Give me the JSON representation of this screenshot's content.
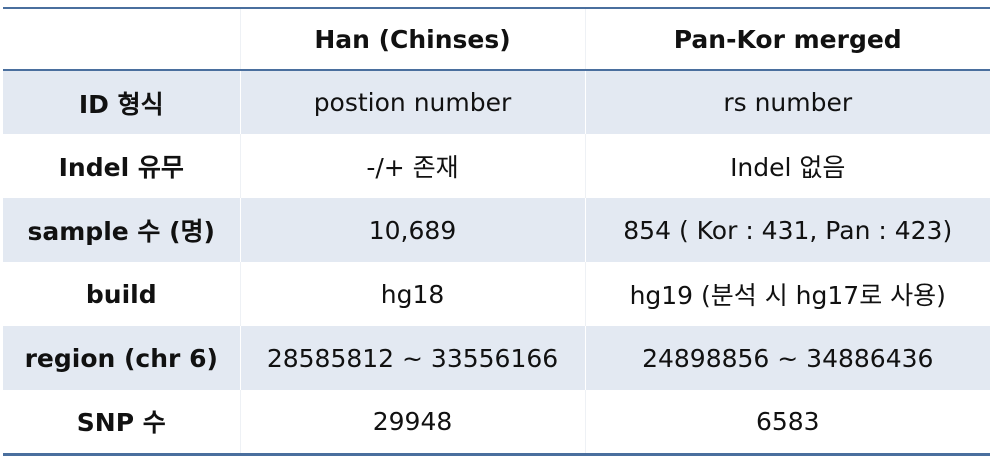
{
  "table": {
    "headers": [
      "",
      "Han (Chinses)",
      "Pan-Kor merged"
    ],
    "rows": [
      {
        "label": "ID 형식",
        "han": "postion number",
        "pankor": "rs number"
      },
      {
        "label": "Indel 유무",
        "han": "-/+ 존재",
        "pankor": "Indel 없음"
      },
      {
        "label": "sample 수 (명)",
        "han": "10,689",
        "pankor": "854 ( Kor : 431, Pan : 423)"
      },
      {
        "label": "build",
        "han": "hg18",
        "pankor": "hg19 (분석 시 hg17로 사용)"
      },
      {
        "label": "region (chr 6)",
        "han": "28585812 ~ 33556166",
        "pankor": "24898856 ~ 34886436"
      },
      {
        "label": "SNP 수",
        "han": "29948",
        "pankor": "6583"
      }
    ]
  },
  "colors": {
    "rule": "#4a6f9e",
    "shaded_row": "#e3e9f2"
  }
}
